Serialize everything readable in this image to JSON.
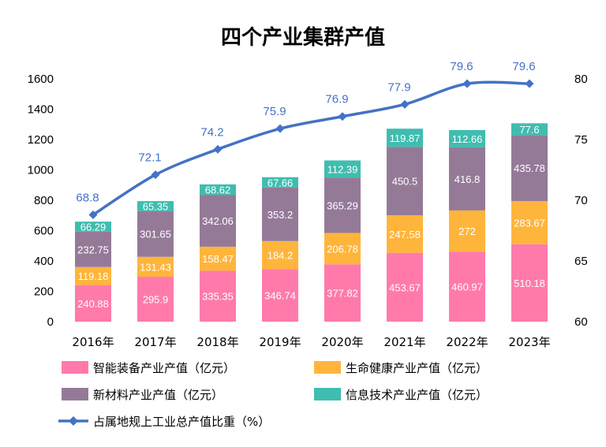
{
  "chart_data": {
    "type": "bar",
    "stacked": true,
    "title": "四个产业集群产值",
    "categories": [
      "2016年",
      "2017年",
      "2018年",
      "2019年",
      "2020年",
      "2021年",
      "2022年",
      "2023年"
    ],
    "series": [
      {
        "name": "智能装备产业产值（亿元）",
        "color": "#ff7aab",
        "values": [
          240.88,
          295.9,
          335.35,
          346.74,
          377.82,
          453.67,
          460.97,
          510.18
        ]
      },
      {
        "name": "生命健康产业产值（亿元）",
        "color": "#ffb53b",
        "values": [
          119.18,
          131.43,
          158.47,
          184.2,
          206.78,
          247.58,
          272,
          283.67
        ]
      },
      {
        "name": "新材料产业产值（亿元）",
        "color": "#957a98",
        "values": [
          232.75,
          301.65,
          342.06,
          353.2,
          365.29,
          450.5,
          416.8,
          435.78
        ]
      },
      {
        "name": "信息技术产业产值（亿元）",
        "color": "#3fbdb0",
        "values": [
          66.29,
          65.35,
          68.62,
          67.66,
          112.39,
          119.87,
          112.66,
          77.6
        ]
      }
    ],
    "line_series": {
      "name": "占属地规上工业总产值比重（%）",
      "color": "#4472c4",
      "values": [
        68.8,
        72.1,
        74.2,
        75.9,
        76.9,
        77.9,
        79.6,
        79.6
      ],
      "axis": "right"
    },
    "ylim": [
      0,
      1600
    ],
    "yticks": [
      "0",
      "200",
      "400",
      "600",
      "800",
      "1000",
      "1200",
      "1400",
      "1600"
    ],
    "y2lim": [
      60,
      80
    ],
    "y2ticks": [
      "60",
      "65",
      "70",
      "75",
      "80"
    ],
    "grid": false,
    "legend_position": "bottom"
  }
}
